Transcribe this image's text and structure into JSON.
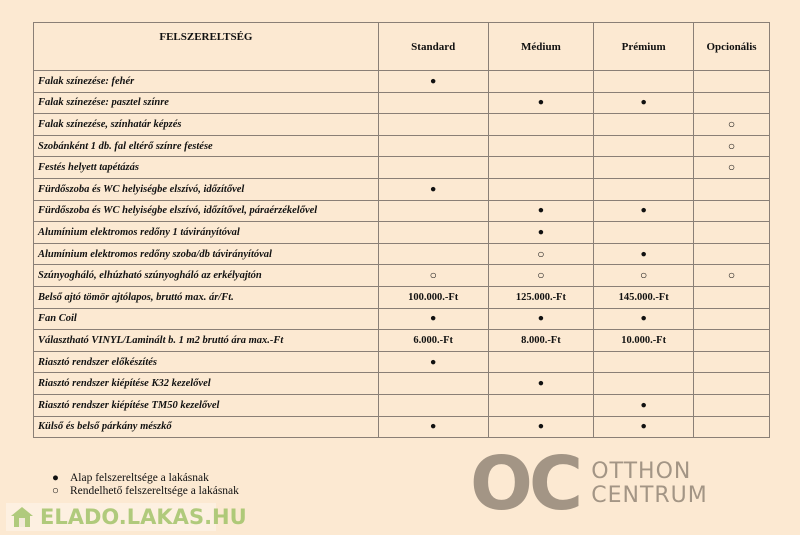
{
  "header": {
    "feature": "FELSZERELTSÉG",
    "cols": [
      "Standard",
      "Médium",
      "Prémium",
      "Opcionális"
    ]
  },
  "rows": [
    {
      "label": "Falak színezése: fehér",
      "v": [
        "●",
        "",
        "",
        ""
      ]
    },
    {
      "label": "Falak színezése: pasztel színre",
      "v": [
        "",
        "●",
        "●",
        ""
      ]
    },
    {
      "label": "Falak színezése, színhatár képzés",
      "v": [
        "",
        "",
        "",
        "○"
      ]
    },
    {
      "label": "Szobánként 1 db. fal eltérő színre festése",
      "v": [
        "",
        "",
        "",
        "○"
      ]
    },
    {
      "label": "Festés helyett tapétázás",
      "v": [
        "",
        "",
        "",
        "○"
      ]
    },
    {
      "label": "Fürdőszoba és WC helyiségbe elszívó, időzítővel",
      "v": [
        "●",
        "",
        "",
        ""
      ]
    },
    {
      "label": "Fürdőszoba és WC helyiségbe elszívó, időzítővel, páraérzékelővel",
      "v": [
        "",
        "●",
        "●",
        ""
      ]
    },
    {
      "label": "Alumínium elektromos redőny 1 távirányítóval",
      "v": [
        "",
        "●",
        "",
        ""
      ]
    },
    {
      "label": "Alumínium elektromos redőny szoba/db távirányítóval",
      "v": [
        "",
        "○",
        "●",
        ""
      ]
    },
    {
      "label": "Szúnyogháló, elhúzható szúnyogháló az erkélyajtón",
      "v": [
        "○",
        "○",
        "○",
        "○"
      ]
    },
    {
      "label": "Belső ajtó tömör ajtólapos, bruttó max. ár/Ft.",
      "v": [
        "100.000.-Ft",
        "125.000.-Ft",
        "145.000.-Ft",
        ""
      ]
    },
    {
      "label": "Fan Coil",
      "v": [
        "●",
        "●",
        "●",
        ""
      ]
    },
    {
      "label": "Választható VINYL/Laminált b. 1 m2 bruttó ára max.-Ft",
      "v": [
        "6.000.-Ft",
        "8.000.-Ft",
        "10.000.-Ft",
        ""
      ]
    },
    {
      "label": "Riasztó rendszer előkészítés",
      "v": [
        "●",
        "",
        "",
        ""
      ]
    },
    {
      "label": "Riasztó rendszer kiépítése K32 kezelővel",
      "v": [
        "",
        "●",
        "",
        ""
      ]
    },
    {
      "label": "Riasztó rendszer kiépítése TM50 kezelővel",
      "v": [
        "",
        "",
        "●",
        ""
      ]
    },
    {
      "label": "Külső és belső párkány mészkő",
      "v": [
        "●",
        "●",
        "●",
        ""
      ]
    }
  ],
  "legend": [
    {
      "sym": "●",
      "text": "Alap felszereltsége a lakásnak"
    },
    {
      "sym": "○",
      "text": "Rendelhető felszereltsége a lakásnak"
    }
  ],
  "watermark": {
    "logo": "OC",
    "line1": "OTTHON",
    "line2": "CENTRUM"
  },
  "site_watermark": "ELADO.LAKAS.HU",
  "colors": {
    "background": "#fce9d2",
    "border": "#8a7f76"
  }
}
